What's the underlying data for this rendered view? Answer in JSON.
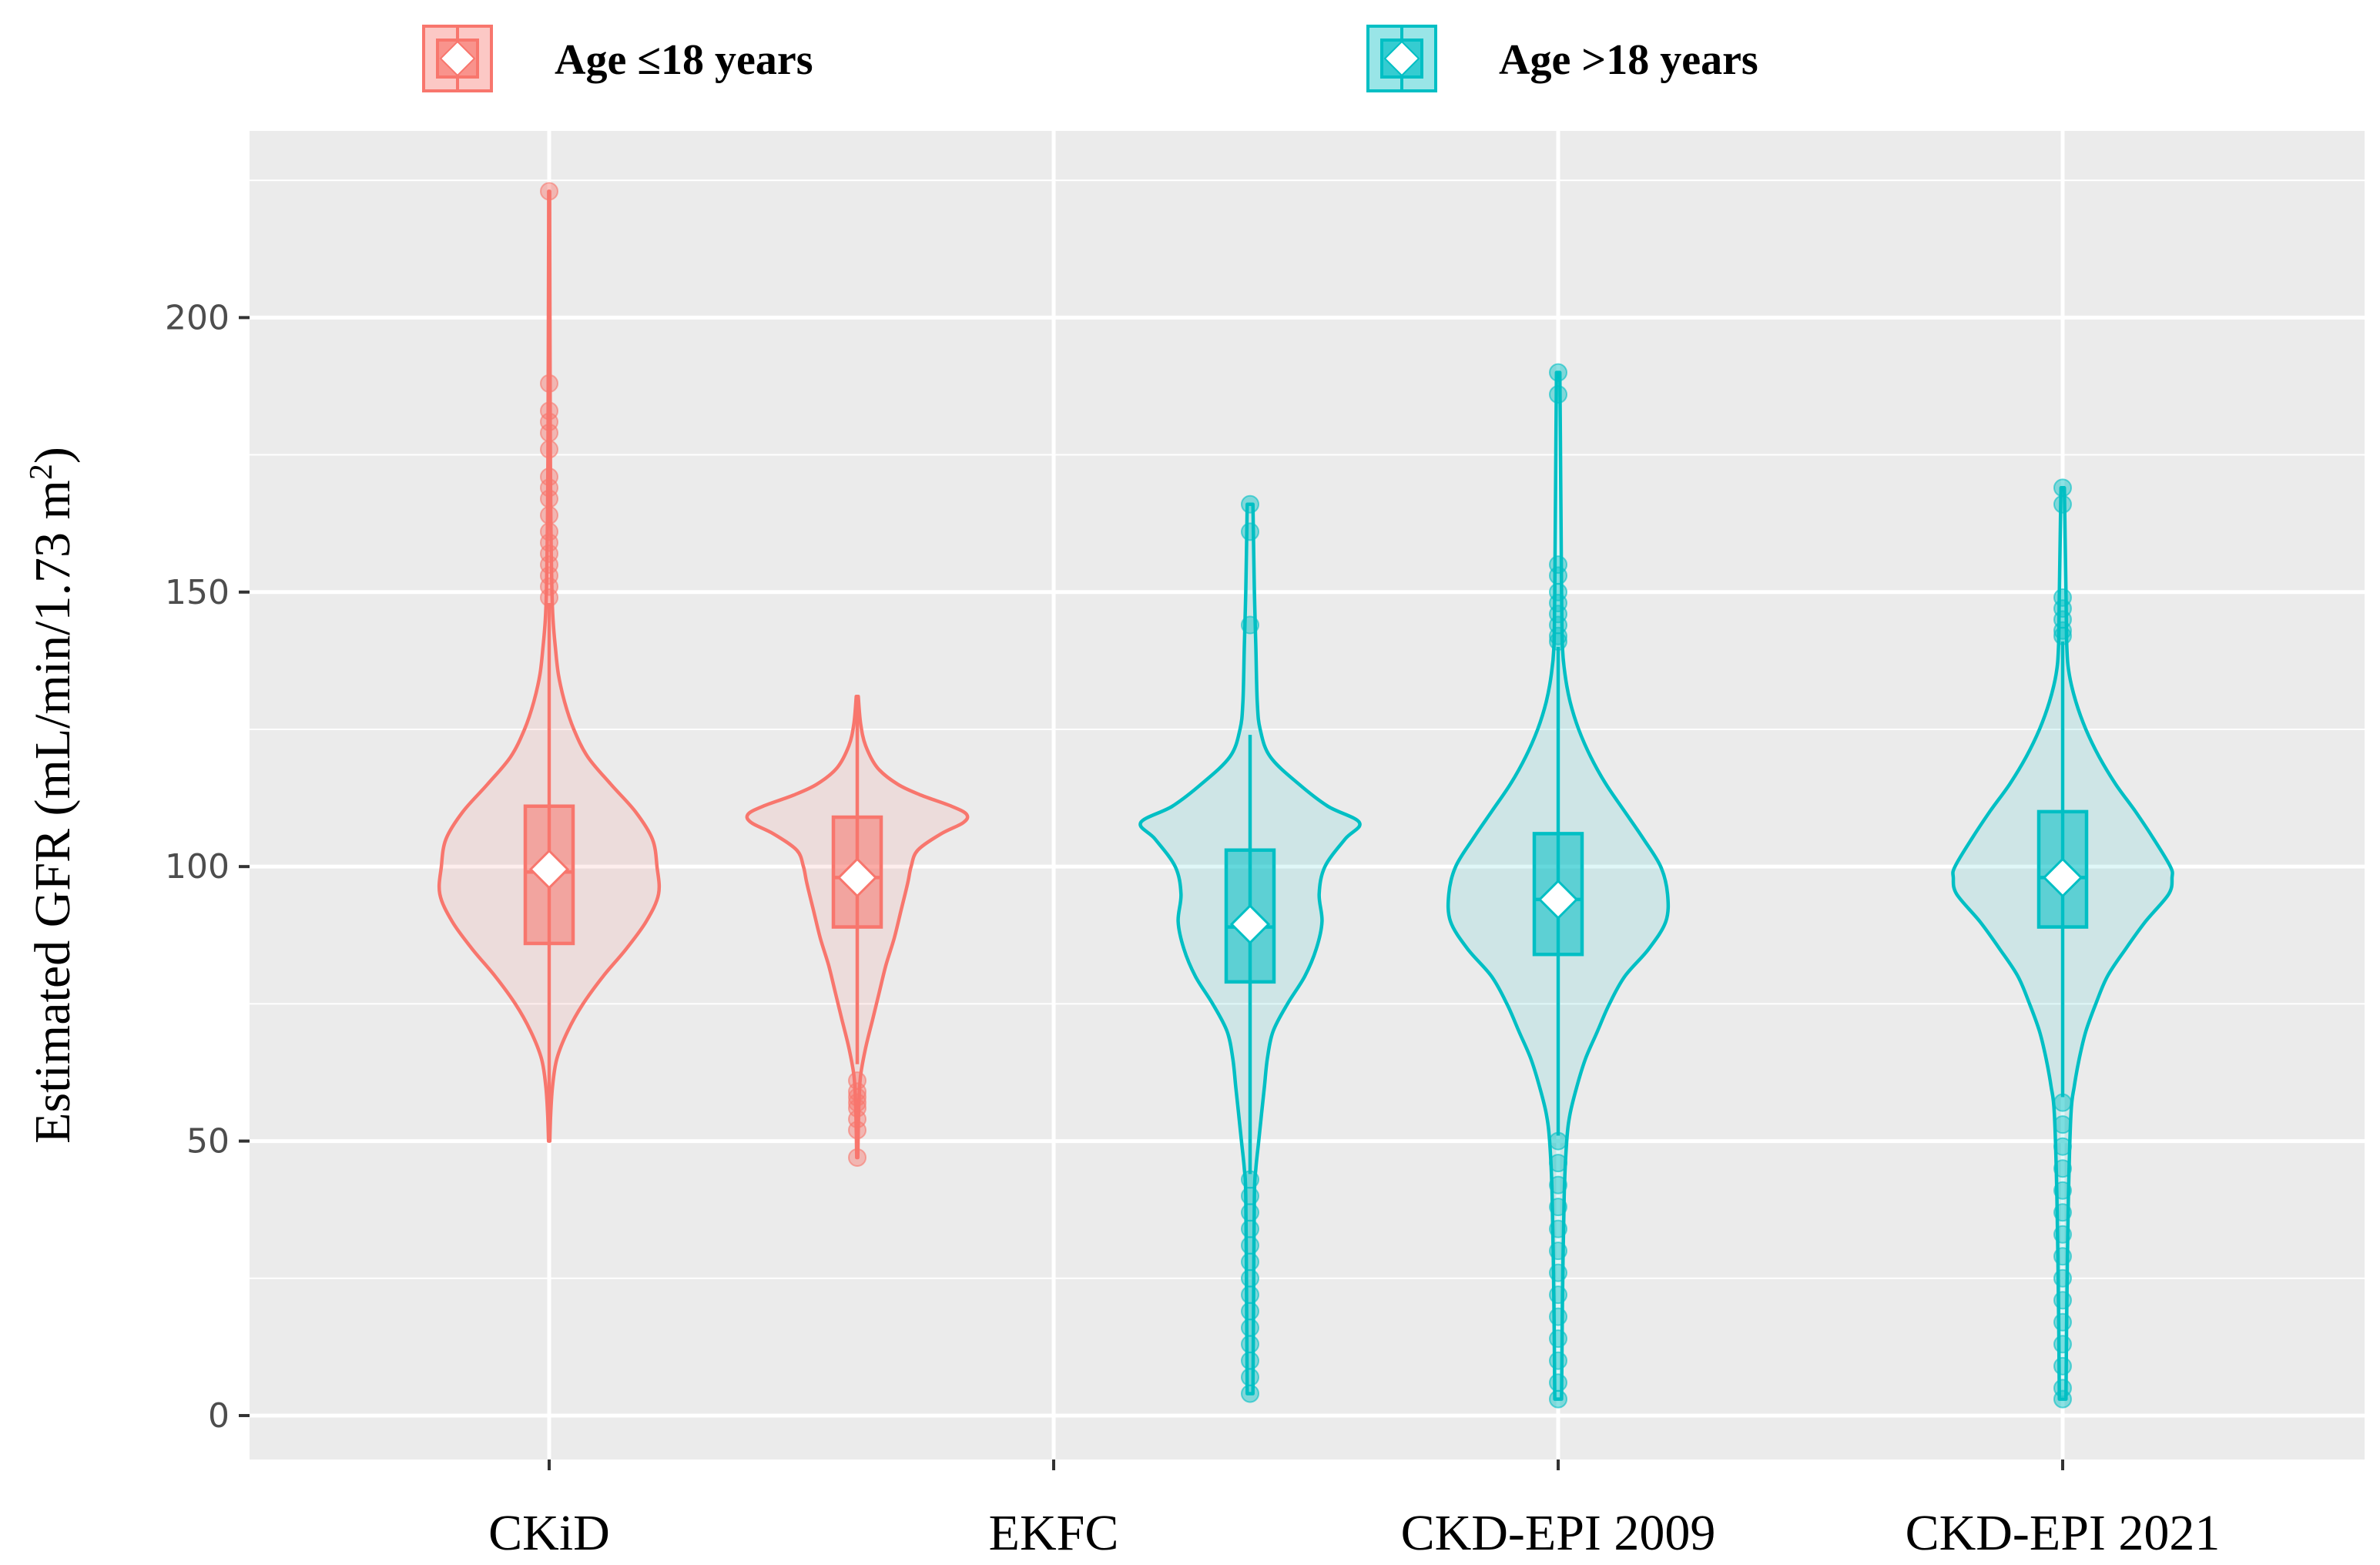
{
  "chart_data": {
    "type": "violin",
    "categories": [
      "CKiD",
      "EKFC",
      "CKD-EPI 2009",
      "CKD-EPI 2021"
    ],
    "ylabel": "Estimated GFR (mL/min/1.73 m",
    "ylabel_sup": "2",
    "ylabel_close": ")",
    "xlabel": "",
    "ylim": [
      -8,
      234
    ],
    "yticks": [
      0,
      50,
      100,
      150,
      200
    ],
    "grid": true,
    "legend_position": "top",
    "colors": {
      "le18": "#F8766D",
      "gt18": "#00BFC4",
      "panel": "#EBEBEB",
      "grid": "#FFFFFF"
    },
    "series": [
      {
        "name": "Age ≤18 years",
        "color": "#F8766D",
        "groups": [
          {
            "category": "CKiD",
            "min": 50,
            "q1": 86,
            "median": 99,
            "q3": 111,
            "max": 148,
            "mean": 99.5,
            "outliers": [
              223,
              188,
              183,
              181,
              179,
              176,
              171,
              169,
              167,
              164,
              161,
              159,
              157,
              155,
              153,
              151,
              149
            ],
            "density": [
              [
                50,
                0.4
              ],
              [
                55,
                1
              ],
              [
                60,
                2.2
              ],
              [
                65,
                5
              ],
              [
                70,
                12
              ],
              [
                75,
                22
              ],
              [
                80,
                35
              ],
              [
                85,
                50
              ],
              [
                90,
                63
              ],
              [
                95,
                71
              ],
              [
                100,
                70
              ],
              [
                105,
                67
              ],
              [
                110,
                56
              ],
              [
                115,
                40
              ],
              [
                120,
                25
              ],
              [
                125,
                16
              ],
              [
                130,
                10
              ],
              [
                135,
                6
              ],
              [
                140,
                4
              ],
              [
                145,
                2.5
              ],
              [
                150,
                1.8
              ],
              [
                160,
                1.2
              ],
              [
                170,
                0.9
              ],
              [
                180,
                0.7
              ],
              [
                190,
                0.6
              ],
              [
                200,
                0.5
              ],
              [
                210,
                0.4
              ],
              [
                223,
                0.3
              ]
            ]
          },
          {
            "category": "EKFC",
            "min": 64,
            "q1": 89,
            "median": 98,
            "q3": 109,
            "max": 131,
            "mean": 98,
            "outliers": [
              61,
              59,
              58,
              57,
              56,
              54,
              52,
              47
            ],
            "density": [
              [
                47,
                0.3
              ],
              [
                52,
                0.6
              ],
              [
                57,
                1
              ],
              [
                62,
                2
              ],
              [
                67,
                5
              ],
              [
                72,
                9
              ],
              [
                77,
                13
              ],
              [
                82,
                17
              ],
              [
                87,
                22
              ],
              [
                92,
                26
              ],
              [
                97,
                30
              ],
              [
                100,
                32
              ],
              [
                103,
                36
              ],
              [
                106,
                50
              ],
              [
                108,
                63
              ],
              [
                109.5,
                65
              ],
              [
                111,
                56
              ],
              [
                113,
                38
              ],
              [
                115,
                24
              ],
              [
                118,
                12
              ],
              [
                122,
                5
              ],
              [
                126,
                2
              ],
              [
                131,
                0.6
              ]
            ]
          }
        ]
      },
      {
        "name": "Age >18 years",
        "color": "#00BFC4",
        "groups": [
          {
            "category": "EKFC",
            "min": 44,
            "q1": 79,
            "median": 89,
            "q3": 103,
            "max": 124,
            "mean": 89.5,
            "outliers": [
              166,
              161,
              144,
              43,
              40,
              37,
              34,
              31,
              28,
              25,
              22,
              19,
              16,
              13,
              10,
              7,
              4
            ],
            "density": [
              [
                4,
                1
              ],
              [
                20,
                1.2
              ],
              [
                40,
                1.5
              ],
              [
                45,
                2
              ],
              [
                50,
                3
              ],
              [
                55,
                4
              ],
              [
                60,
                5
              ],
              [
                65,
                6
              ],
              [
                70,
                8
              ],
              [
                75,
                13
              ],
              [
                80,
                19
              ],
              [
                85,
                23
              ],
              [
                90,
                25
              ],
              [
                95,
                24
              ],
              [
                100,
                26
              ],
              [
                105,
                33
              ],
              [
                108,
                38
              ],
              [
                111,
                27
              ],
              [
                115,
                17
              ],
              [
                120,
                7
              ],
              [
                125,
                3.5
              ],
              [
                130,
                2.5
              ],
              [
                140,
                2
              ],
              [
                150,
                1.5
              ],
              [
                166,
                1
              ]
            ]
          },
          {
            "category": "CKD-EPI 2009",
            "min": 51,
            "q1": 84,
            "median": 94,
            "q3": 106,
            "max": 140,
            "mean": 94,
            "outliers": [
              190,
              186,
              155,
              153,
              150,
              148,
              146,
              144,
              142,
              141,
              50,
              46,
              42,
              38,
              34,
              30,
              26,
              22,
              18,
              14,
              10,
              6,
              3
            ],
            "density": [
              [
                3,
                2
              ],
              [
                20,
                2.5
              ],
              [
                40,
                3.5
              ],
              [
                50,
                5
              ],
              [
                55,
                7
              ],
              [
                60,
                11
              ],
              [
                65,
                16
              ],
              [
                70,
                23
              ],
              [
                75,
                30
              ],
              [
                80,
                39
              ],
              [
                85,
                53
              ],
              [
                90,
                63
              ],
              [
                95,
                64
              ],
              [
                100,
                60
              ],
              [
                105,
                50
              ],
              [
                110,
                39
              ],
              [
                115,
                28
              ],
              [
                120,
                19
              ],
              [
                125,
                12
              ],
              [
                130,
                7
              ],
              [
                135,
                4
              ],
              [
                140,
                2.5
              ],
              [
                150,
                2
              ],
              [
                170,
                1.5
              ],
              [
                190,
                1
              ]
            ]
          },
          {
            "category": "CKD-EPI 2021",
            "min": 58,
            "q1": 89,
            "median": 98,
            "q3": 110,
            "max": 141,
            "mean": 98,
            "outliers": [
              169,
              166,
              149,
              147,
              145,
              143,
              142,
              57,
              53,
              49,
              45,
              41,
              37,
              33,
              29,
              25,
              21,
              17,
              13,
              9,
              5,
              3
            ],
            "density": [
              [
                3,
                2
              ],
              [
                20,
                2.5
              ],
              [
                40,
                3.5
              ],
              [
                55,
                5
              ],
              [
                60,
                7
              ],
              [
                65,
                10
              ],
              [
                70,
                14
              ],
              [
                75,
                20
              ],
              [
                80,
                27
              ],
              [
                85,
                38
              ],
              [
                90,
                50
              ],
              [
                95,
                64
              ],
              [
                98,
                66
              ],
              [
                100,
                65
              ],
              [
                105,
                55
              ],
              [
                110,
                44
              ],
              [
                115,
                32
              ],
              [
                120,
                22
              ],
              [
                125,
                14
              ],
              [
                130,
                8
              ],
              [
                135,
                4
              ],
              [
                140,
                2.5
              ],
              [
                150,
                2
              ],
              [
                160,
                1.5
              ],
              [
                169,
                1
              ]
            ]
          }
        ]
      }
    ]
  }
}
